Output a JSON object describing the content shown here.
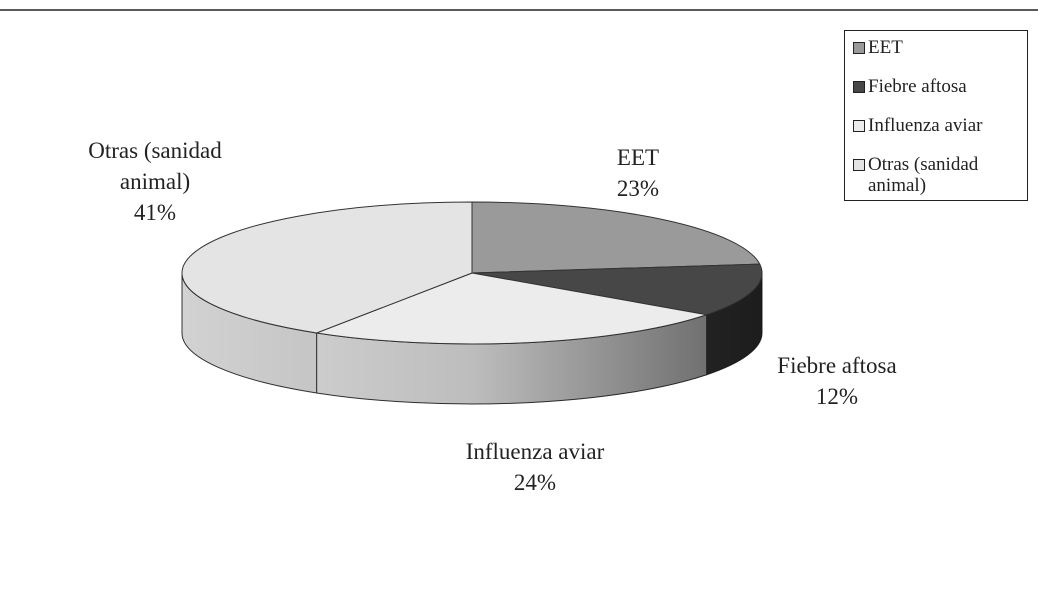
{
  "chart_data": {
    "type": "pie3d",
    "categories": [
      "EET",
      "Fiebre aftosa",
      "Influenza aviar",
      "Otras (sanidad animal)"
    ],
    "values": [
      23,
      12,
      24,
      41
    ],
    "value_labels": [
      "23%",
      "12%",
      "24%",
      "41%"
    ],
    "colors": [
      "#9a9a9a",
      "#474747",
      "#ececec",
      "#e4e4e4"
    ],
    "legend": "upper right"
  }
}
